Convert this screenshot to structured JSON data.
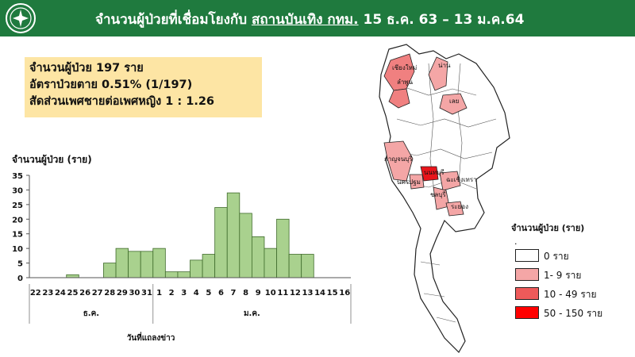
{
  "header": {
    "title_prefix": "จำนวนผู้ป่วยที่เชื่อมโยงกับ",
    "title_underlined": "สถานบันเทิง กทม.",
    "title_suffix": "15 ธ.ค. 63 – 13 ม.ค.64",
    "header_color": "#1f7a3e"
  },
  "summary": {
    "line1": "จำนวนผู้ป่วย 197 ราย",
    "line2": "อัตราป่วยตาย 0.51% (1/197)",
    "line3": "สัดส่วนเพศชายต่อเพศหญิง 1 : 1.26"
  },
  "chart_data": {
    "type": "bar",
    "ylabel": "จำนวนผู้ป่วย (ราย)",
    "xlabel": "วันที่แถลงข่าว",
    "ylim": [
      0,
      35
    ],
    "yticks": [
      0,
      5,
      10,
      15,
      20,
      25,
      30,
      35
    ],
    "categories": [
      "22",
      "23",
      "24",
      "25",
      "26",
      "27",
      "28",
      "29",
      "30",
      "31",
      "1",
      "2",
      "3",
      "4",
      "5",
      "6",
      "7",
      "8",
      "9",
      "10",
      "11",
      "12",
      "13",
      "14",
      "15",
      "16"
    ],
    "values": [
      0,
      0,
      0,
      1,
      0,
      0,
      5,
      10,
      9,
      9,
      10,
      2,
      2,
      6,
      8,
      24,
      29,
      22,
      14,
      10,
      20,
      8,
      8,
      0,
      0,
      0
    ],
    "month_groups": [
      {
        "label": "ธ.ค.",
        "from": 0,
        "to": 9
      },
      {
        "label": "ม.ค.",
        "from": 10,
        "to": 25
      }
    ],
    "bar_color": "#a9d18e",
    "bar_edge": "#3f6b2b",
    "grid": false
  },
  "map": {
    "provinces": [
      {
        "label": "เชียงใหม่",
        "fill": "#f08080"
      },
      {
        "label": "ลำพูน",
        "fill": "#f08080"
      },
      {
        "label": "น่าน",
        "fill": "#f4a6a6"
      },
      {
        "label": "เลย",
        "fill": "#f4a6a6"
      },
      {
        "label": "กาญจนบุรี",
        "fill": "#f4a6a6"
      },
      {
        "label": "นนทบุรี",
        "fill": "#e8141b"
      },
      {
        "label": "นครปฐม",
        "fill": "#f4a6a6"
      },
      {
        "label": "ฉะเชิงเทรา",
        "fill": "#f4a6a6"
      },
      {
        "label": "ชลบุรี",
        "fill": "#f4a6a6"
      },
      {
        "label": "ระยอง",
        "fill": "#f4a6a6"
      }
    ]
  },
  "legend": {
    "title": "จำนวนผู้ป่วย (ราย)",
    "dot": ".",
    "items": [
      {
        "label": "0 ราย",
        "color": "#ffffff"
      },
      {
        "label": "1- 9 ราย",
        "color": "#f4a6a6"
      },
      {
        "label": "10 - 49 ราย",
        "color": "#ee5a5a"
      },
      {
        "label": "50 - 150 ราย",
        "color": "#ff0000"
      }
    ]
  }
}
